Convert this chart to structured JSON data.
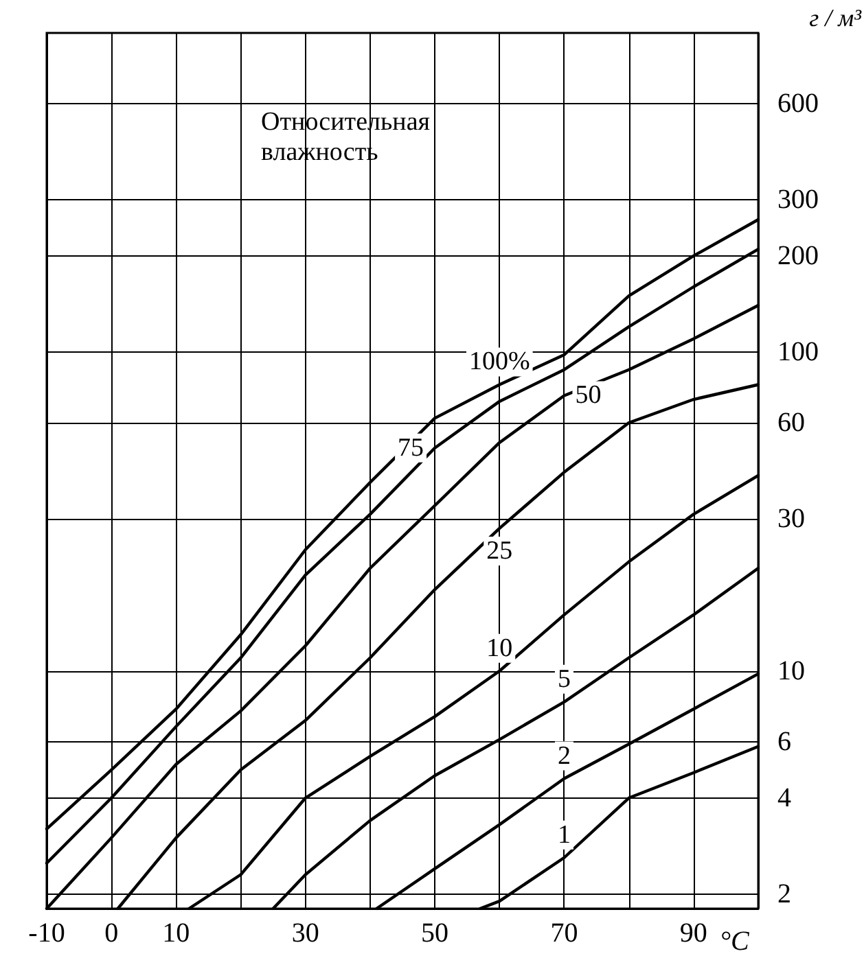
{
  "chart_data": {
    "type": "line",
    "xlabel": "°C",
    "ylabel": "г / м³",
    "annotations": [
      "Относительная влажность"
    ],
    "xlim": [
      -10,
      100
    ],
    "xticks": [
      -10,
      0,
      10,
      {
        "value": 20,
        "label": null
      },
      30,
      {
        "value": 40,
        "label": null
      },
      50,
      {
        "value": 60,
        "label": null
      },
      70,
      {
        "value": 80,
        "label": null
      },
      90,
      {
        "value": 100,
        "label": null
      }
    ],
    "ylim": [
      1.8,
      1000
    ],
    "yticks": [
      2,
      4,
      6,
      10,
      30,
      60,
      100,
      200,
      300,
      600
    ],
    "log": "y",
    "grid": true,
    "series": [
      {
        "name": "100%",
        "color": "#000000",
        "x": [
          -10,
          0,
          10,
          20,
          30,
          40,
          50,
          60,
          70,
          80,
          90,
          100
        ],
        "values": [
          3.2,
          4.9,
          7.6,
          13,
          24,
          39,
          62,
          79,
          98,
          150,
          200,
          260
        ]
      },
      {
        "name": "75",
        "color": "#000000",
        "x": [
          -10,
          0,
          10,
          20,
          30,
          40,
          50,
          60,
          70,
          80,
          90,
          100
        ],
        "values": [
          2.5,
          4,
          6.7,
          11,
          20,
          31,
          50,
          70,
          88,
          120,
          160,
          210
        ]
      },
      {
        "name": "50",
        "color": "#000000",
        "x": [
          -10,
          0,
          10,
          20,
          30,
          40,
          50,
          60,
          70,
          80,
          90,
          100
        ],
        "values": [
          1.8,
          3,
          5.1,
          7.5,
          12,
          21,
          33,
          52,
          73,
          88,
          110,
          140
        ]
      },
      {
        "name": "25",
        "color": "#000000",
        "x": [
          1,
          10,
          20,
          30,
          40,
          50,
          60,
          70,
          80,
          90,
          100
        ],
        "values": [
          1.8,
          3,
          4.9,
          7,
          11,
          18,
          28,
          42,
          60,
          71,
          79
        ]
      },
      {
        "name": "10",
        "color": "#000000",
        "x": [
          12,
          20,
          30,
          40,
          50,
          60,
          70,
          80,
          90,
          100
        ],
        "values": [
          1.8,
          2.3,
          4,
          5.4,
          7.2,
          10,
          15,
          22,
          31,
          41
        ]
      },
      {
        "name": "5",
        "color": "#000000",
        "x": [
          25,
          30,
          40,
          50,
          60,
          70,
          80,
          90,
          100
        ],
        "values": [
          1.8,
          2.3,
          3.4,
          4.7,
          6.1,
          8,
          11,
          15,
          21
        ]
      },
      {
        "name": "2",
        "color": "#000000",
        "x": [
          41,
          50,
          60,
          70,
          80,
          90,
          100
        ],
        "values": [
          1.8,
          2.4,
          3.3,
          4.6,
          5.9,
          7.6,
          9.8
        ]
      },
      {
        "name": "1",
        "color": "#000000",
        "x": [
          57,
          60,
          70,
          80,
          90,
          100
        ],
        "values": [
          1.8,
          1.9,
          2.6,
          4,
          4.8,
          5.8
        ]
      }
    ]
  }
}
